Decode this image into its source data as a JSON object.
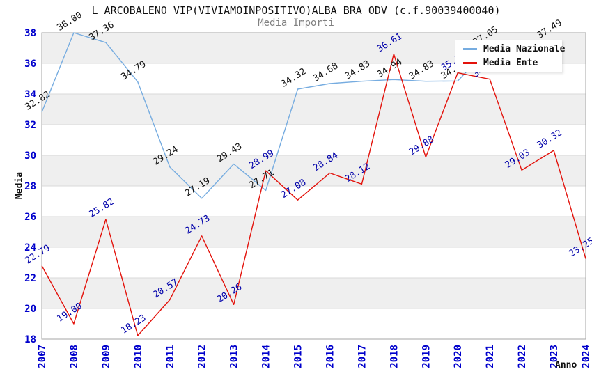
{
  "header": {
    "title": "L ARCOBALENO VIP(VIVIAMOINPOSITIVO)ALBA BRA ODV (c.f.90039400040)",
    "subtitle": "Media Importi"
  },
  "axes": {
    "x_label": "Anno",
    "y_label": "Media",
    "x_ticks": [
      "2007",
      "2008",
      "2009",
      "2010",
      "2011",
      "2012",
      "2013",
      "2014",
      "2015",
      "2016",
      "2017",
      "2018",
      "2019",
      "2020",
      "2021",
      "2022",
      "2023",
      "2024"
    ],
    "y_ticks": [
      "18",
      "20",
      "22",
      "24",
      "26",
      "28",
      "30",
      "32",
      "34",
      "36",
      "38"
    ]
  },
  "legend": {
    "position": "top-right",
    "items": [
      {
        "label": "Media Nazionale",
        "color": "#76ACE0"
      },
      {
        "label": "Media Ente",
        "color": "#E3120B"
      }
    ]
  },
  "colors": {
    "band_gray": "#EFEFEF",
    "gridline": "#D9D9D9",
    "frame": "#A6A6A6",
    "tick_label_blue": "#0000CC",
    "label_black": "#111111",
    "label_navy": "#0000AA"
  },
  "chart_data": {
    "type": "line",
    "title": "L ARCOBALENO VIP(VIVIAMOINPOSITIVO)ALBA BRA ODV (c.f.90039400040)",
    "subtitle": "Media Importi",
    "xlabel": "Anno",
    "ylabel": "Media",
    "x": [
      2007,
      2008,
      2009,
      2010,
      2011,
      2012,
      2013,
      2014,
      2015,
      2016,
      2017,
      2018,
      2019,
      2020,
      2021,
      2022,
      2023,
      2024
    ],
    "ylim": [
      18,
      38
    ],
    "ytick_step": 2,
    "grid": true,
    "legend_position": "top-right",
    "series": [
      {
        "name": "Media Nazionale",
        "color": "#76ACE0",
        "label_color": "#111111",
        "values": [
          32.82,
          38.0,
          37.36,
          34.79,
          29.24,
          27.19,
          29.43,
          27.71,
          34.32,
          34.68,
          34.83,
          34.94,
          34.83,
          34.85,
          37.05,
          37.2,
          37.49,
          null
        ],
        "labels": [
          "32.82",
          "38.00",
          "37.36",
          "34.79",
          "29.24",
          "27.19",
          "29.43",
          "27.71",
          "34.32",
          "34.68",
          "34.83",
          "34.94",
          "34.83",
          "34.85",
          "37.05",
          null,
          "37.49",
          null
        ]
      },
      {
        "name": "Media Ente",
        "color": "#E3120B",
        "label_color": "#0000AA",
        "values": [
          22.79,
          19.0,
          25.82,
          18.23,
          20.57,
          24.73,
          20.26,
          28.99,
          27.08,
          28.84,
          28.12,
          36.61,
          29.88,
          35.38,
          34.97,
          29.03,
          30.32,
          23.25
        ],
        "labels": [
          "22.79",
          "19.00",
          "25.82",
          "18.23",
          "20.57",
          "24.73",
          "20.26",
          "28.99",
          "27.08",
          "28.84",
          "28.12",
          "36.61",
          "29.88",
          "35.38",
          "34.97",
          "29.03",
          "30.32",
          "23.25"
        ]
      }
    ]
  }
}
